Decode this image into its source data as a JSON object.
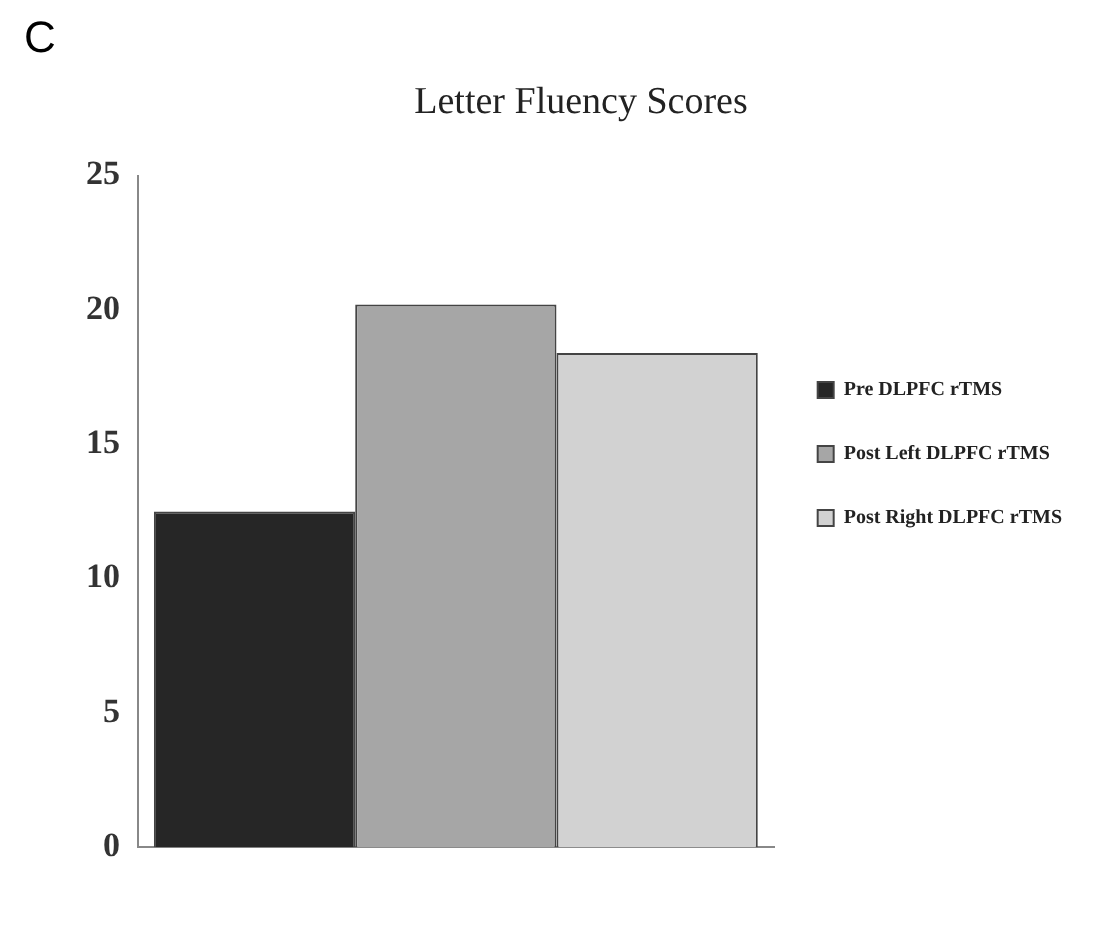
{
  "chart_data": {
    "type": "bar",
    "title": "Letter Fluency Scores",
    "annotations": [
      "C"
    ],
    "categories": [
      null
    ],
    "series": [
      {
        "name": "Pre DLPFC rTMS",
        "color": "#262626",
        "values": [
          12.5
        ]
      },
      {
        "name": "Post Left DLPFC rTMS",
        "color": "#a6a6a6",
        "values": [
          20.2
        ]
      },
      {
        "name": "Post Right DLPFC rTMS",
        "color": "#d2d2d2",
        "values": [
          18.4
        ]
      }
    ],
    "ylim": [
      0,
      25
    ],
    "yticks": [
      0,
      5,
      10,
      15,
      20,
      25
    ],
    "grid": false,
    "legend": "right"
  }
}
